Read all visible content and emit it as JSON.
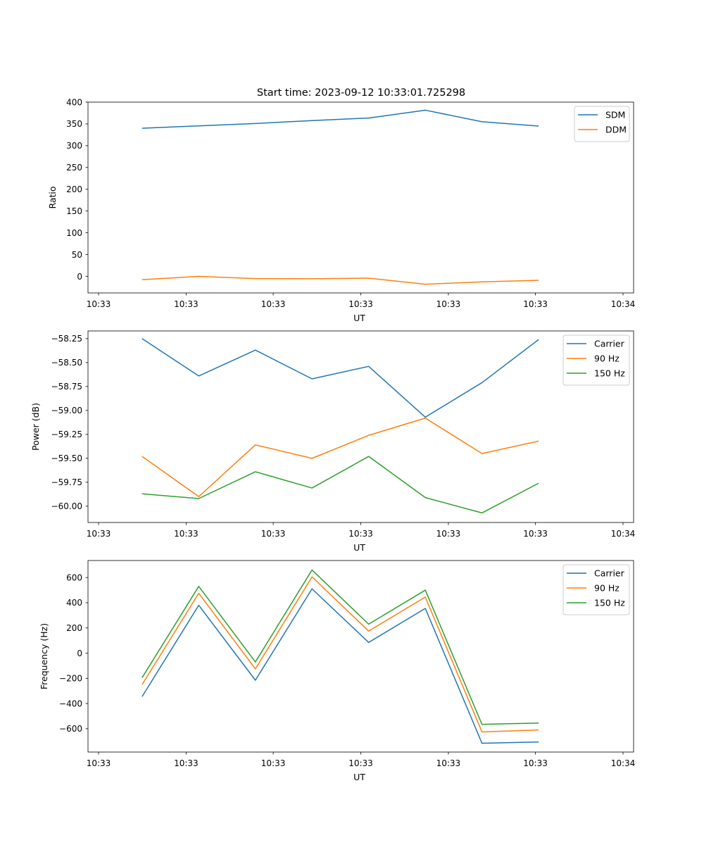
{
  "figure": {
    "suptitle": "Start time: 2023-09-12 10:33:01.725298"
  },
  "colors": {
    "blue": "#1f77b4",
    "orange": "#ff7f0e",
    "green": "#2ca02c"
  },
  "chart_data": [
    {
      "type": "line",
      "title": "",
      "xlabel": "UT",
      "ylabel": "Ratio",
      "xlim": [
        0,
        1
      ],
      "ylim": [
        -38,
        400
      ],
      "xticks": [
        0.0,
        0.167,
        0.333,
        0.5,
        0.667,
        0.833,
        1.0
      ],
      "xtick_labels": [
        "10:33",
        "10:33",
        "10:33",
        "10:33",
        "10:33",
        "10:33",
        "10:34"
      ],
      "yticks": [
        0,
        50,
        100,
        150,
        200,
        250,
        300,
        350,
        400
      ],
      "ytick_labels": [
        "0",
        "50",
        "100",
        "150",
        "200",
        "250",
        "300",
        "350",
        "400"
      ],
      "legend": "top-right",
      "x": [
        0.083,
        0.191,
        0.299,
        0.407,
        0.515,
        0.623,
        0.731,
        0.839
      ],
      "series": [
        {
          "name": "SDM",
          "color": "#1f77b4",
          "values": [
            340,
            345.5,
            351,
            357.5,
            363.5,
            381.5,
            355,
            345
          ]
        },
        {
          "name": "DDM",
          "color": "#ff7f0e",
          "values": [
            -7.5,
            0,
            -5,
            -5.5,
            -4,
            -18,
            -12.5,
            -9
          ]
        }
      ]
    },
    {
      "type": "line",
      "title": "",
      "xlabel": "UT",
      "ylabel": "Power (dB)",
      "xlim": [
        0,
        1
      ],
      "ylim": [
        -60.17,
        -58.17
      ],
      "xticks": [
        0.0,
        0.167,
        0.333,
        0.5,
        0.667,
        0.833,
        1.0
      ],
      "xtick_labels": [
        "10:33",
        "10:33",
        "10:33",
        "10:33",
        "10:33",
        "10:33",
        "10:34"
      ],
      "yticks": [
        -60.0,
        -59.75,
        -59.5,
        -59.25,
        -59.0,
        -58.75,
        -58.5,
        -58.25
      ],
      "ytick_labels": [
        "−60.00",
        "−59.75",
        "−59.50",
        "−59.25",
        "−59.00",
        "−58.75",
        "−58.50",
        "−58.25"
      ],
      "legend": "top-right",
      "x": [
        0.083,
        0.191,
        0.299,
        0.407,
        0.515,
        0.623,
        0.731,
        0.839
      ],
      "series": [
        {
          "name": "Carrier",
          "color": "#1f77b4",
          "values": [
            -58.25,
            -58.64,
            -58.37,
            -58.67,
            -58.54,
            -59.07,
            -58.71,
            -58.26
          ]
        },
        {
          "name": "90 Hz",
          "color": "#ff7f0e",
          "values": [
            -59.48,
            -59.9,
            -59.36,
            -59.5,
            -59.26,
            -59.08,
            -59.45,
            -59.32
          ]
        },
        {
          "name": "150 Hz",
          "color": "#2ca02c",
          "values": [
            -59.87,
            -59.92,
            -59.64,
            -59.81,
            -59.48,
            -59.91,
            -60.07,
            -59.76
          ]
        }
      ]
    },
    {
      "type": "line",
      "title": "",
      "xlabel": "UT",
      "ylabel": "Frequency (Hz)",
      "xlim": [
        0,
        1
      ],
      "ylim": [
        -785,
        735
      ],
      "xticks": [
        0.0,
        0.167,
        0.333,
        0.5,
        0.667,
        0.833,
        1.0
      ],
      "xtick_labels": [
        "10:33",
        "10:33",
        "10:33",
        "10:33",
        "10:33",
        "10:33",
        "10:34"
      ],
      "yticks": [
        -600,
        -400,
        -200,
        0,
        200,
        400,
        600
      ],
      "ytick_labels": [
        "−600",
        "−400",
        "−200",
        "0",
        "200",
        "400",
        "600"
      ],
      "legend": "top-right",
      "x": [
        0.083,
        0.191,
        0.299,
        0.407,
        0.515,
        0.623,
        0.731,
        0.839
      ],
      "series": [
        {
          "name": "Carrier",
          "color": "#1f77b4",
          "values": [
            -345,
            380,
            -215,
            510,
            85,
            355,
            -715,
            -705
          ]
        },
        {
          "name": "90 Hz",
          "color": "#ff7f0e",
          "values": [
            -250,
            475,
            -125,
            605,
            175,
            445,
            -625,
            -610
          ]
        },
        {
          "name": "150 Hz",
          "color": "#2ca02c",
          "values": [
            -195,
            530,
            -70,
            660,
            230,
            500,
            -565,
            -555
          ]
        }
      ]
    }
  ]
}
